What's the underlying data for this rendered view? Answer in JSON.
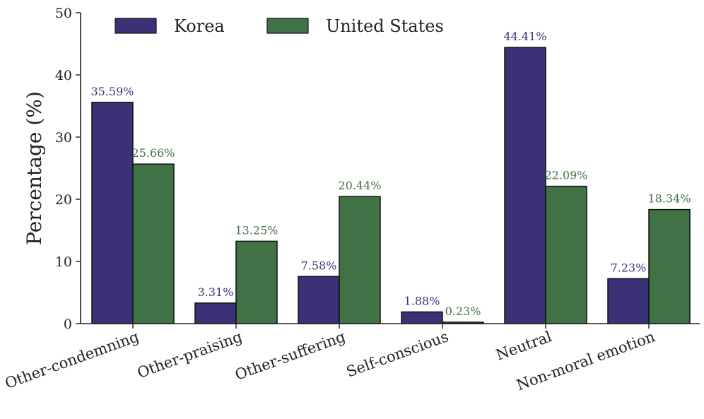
{
  "chart_data": {
    "type": "bar",
    "title": "",
    "xlabel": "",
    "ylabel": "Percentage (%)",
    "ylim": [
      0,
      50
    ],
    "yticks": [
      0,
      10,
      20,
      30,
      40,
      50
    ],
    "grid": false,
    "legend_position": "top-left",
    "categories": [
      "Other-condemning",
      "Other-praising",
      "Other-suffering",
      "Self-conscious",
      "Neutral",
      "Non-moral emotion"
    ],
    "series": [
      {
        "name": "Korea",
        "color": "#3b3176",
        "values": [
          35.59,
          3.31,
          7.58,
          1.88,
          44.41,
          7.23
        ],
        "labels": [
          "35.59%",
          "3.31%",
          "7.58%",
          "1.88%",
          "44.41%",
          "7.23%"
        ]
      },
      {
        "name": "United States",
        "color": "#3f7346",
        "values": [
          25.66,
          13.25,
          20.44,
          0.23,
          22.09,
          18.34
        ],
        "labels": [
          "25.66%",
          "13.25%",
          "20.44%",
          "0.23%",
          "22.09%",
          "18.34%"
        ]
      }
    ]
  }
}
